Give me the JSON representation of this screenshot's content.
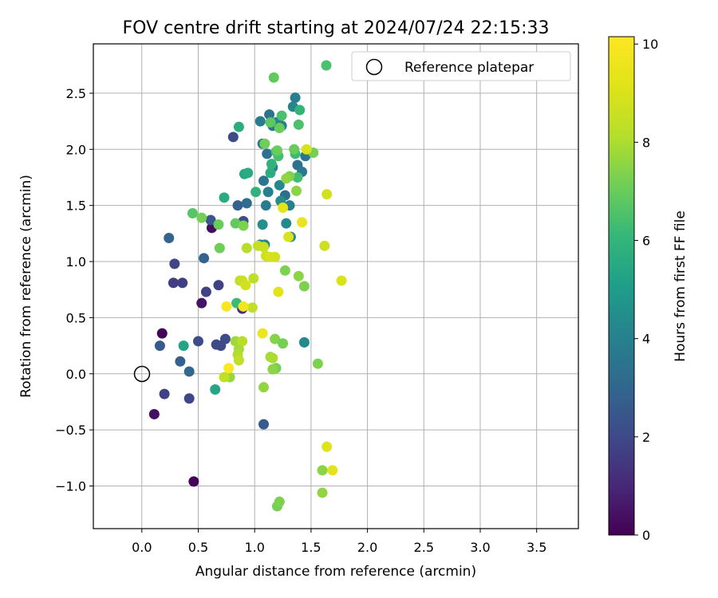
{
  "chart_data": {
    "type": "scatter",
    "title": "FOV centre drift starting at 2024/07/24 22:15:33",
    "xlabel": "Angular distance from reference (arcmin)",
    "ylabel": "Rotation from reference (arcmin)",
    "xlim": [
      -0.43,
      3.87
    ],
    "ylim": [
      -1.38,
      2.94
    ],
    "xticks": [
      "0.0",
      "0.5",
      "1.0",
      "1.5",
      "2.0",
      "2.5",
      "3.0",
      "3.5"
    ],
    "xtick_values": [
      0,
      0.5,
      1.0,
      1.5,
      2.0,
      2.5,
      3.0,
      3.5
    ],
    "yticks": [
      "−1.0",
      "−0.5",
      "0.0",
      "0.5",
      "1.0",
      "1.5",
      "2.0",
      "2.5"
    ],
    "ytick_values": [
      -1.0,
      -0.5,
      0.0,
      0.5,
      1.0,
      1.5,
      2.0,
      2.5
    ],
    "grid": true,
    "legend": {
      "position": "top-right",
      "reference_label": "Reference platepar",
      "marker_color": "#4ac16d"
    },
    "reference_point": {
      "x": 0.0,
      "y": 0.0
    },
    "colorbar": {
      "label": "Hours from first FF file",
      "range": [
        0,
        10.15
      ],
      "ticks": [
        "0",
        "2",
        "4",
        "6",
        "8",
        "10"
      ],
      "tick_values": [
        0,
        2,
        4,
        6,
        8,
        10
      ],
      "colormap": "viridis"
    },
    "points": [
      {
        "x": 0.18,
        "y": 0.36,
        "h": 0.1
      },
      {
        "x": 0.11,
        "y": -0.36,
        "h": 0.4
      },
      {
        "x": 0.46,
        "y": -0.96,
        "h": 0.1
      },
      {
        "x": 0.53,
        "y": 0.63,
        "h": 0.5
      },
      {
        "x": 0.62,
        "y": 1.3,
        "h": 0.3
      },
      {
        "x": 0.2,
        "y": -0.18,
        "h": 1.8
      },
      {
        "x": 0.42,
        "y": -0.22,
        "h": 1.9
      },
      {
        "x": 0.28,
        "y": 0.81,
        "h": 1.6
      },
      {
        "x": 0.36,
        "y": 0.81,
        "h": 1.7
      },
      {
        "x": 0.29,
        "y": 0.98,
        "h": 1.9
      },
      {
        "x": 0.57,
        "y": 0.73,
        "h": 1.8
      },
      {
        "x": 0.68,
        "y": 0.79,
        "h": 1.8
      },
      {
        "x": 0.5,
        "y": 0.29,
        "h": 2.1
      },
      {
        "x": 0.66,
        "y": 0.26,
        "h": 2.0
      },
      {
        "x": 0.7,
        "y": 0.25,
        "h": 2.0
      },
      {
        "x": 0.74,
        "y": 0.31,
        "h": 2.1
      },
      {
        "x": 0.16,
        "y": 0.25,
        "h": 2.6
      },
      {
        "x": 0.34,
        "y": 0.11,
        "h": 2.8
      },
      {
        "x": 0.42,
        "y": 0.02,
        "h": 3.0
      },
      {
        "x": 0.24,
        "y": 1.21,
        "h": 2.9
      },
      {
        "x": 0.55,
        "y": 1.03,
        "h": 2.9
      },
      {
        "x": 1.08,
        "y": -0.45,
        "h": 2.6
      },
      {
        "x": 0.89,
        "y": 0.58,
        "h": 1.2
      },
      {
        "x": 0.61,
        "y": 1.37,
        "h": 2.5
      },
      {
        "x": 0.9,
        "y": 1.36,
        "h": 2.2
      },
      {
        "x": 0.85,
        "y": 1.5,
        "h": 2.8
      },
      {
        "x": 0.93,
        "y": 1.52,
        "h": 3.2
      },
      {
        "x": 0.81,
        "y": 2.11,
        "h": 2.1
      },
      {
        "x": 1.05,
        "y": 2.25,
        "h": 3.8
      },
      {
        "x": 1.07,
        "y": 2.05,
        "h": 3.7
      },
      {
        "x": 1.13,
        "y": 2.31,
        "h": 3.5
      },
      {
        "x": 1.16,
        "y": 2.21,
        "h": 3.6
      },
      {
        "x": 1.19,
        "y": 2.24,
        "h": 4.2
      },
      {
        "x": 1.24,
        "y": 2.21,
        "h": 4.0
      },
      {
        "x": 1.36,
        "y": 2.46,
        "h": 3.9
      },
      {
        "x": 1.34,
        "y": 2.38,
        "h": 4.2
      },
      {
        "x": 1.11,
        "y": 1.96,
        "h": 3.4
      },
      {
        "x": 1.08,
        "y": 1.72,
        "h": 3.6
      },
      {
        "x": 1.12,
        "y": 1.62,
        "h": 4.0
      },
      {
        "x": 1.1,
        "y": 1.5,
        "h": 3.8
      },
      {
        "x": 1.16,
        "y": 1.84,
        "h": 3.9
      },
      {
        "x": 1.22,
        "y": 1.68,
        "h": 4.3
      },
      {
        "x": 1.27,
        "y": 1.59,
        "h": 3.3
      },
      {
        "x": 1.31,
        "y": 1.5,
        "h": 4.0
      },
      {
        "x": 1.38,
        "y": 1.86,
        "h": 3.4
      },
      {
        "x": 1.42,
        "y": 1.8,
        "h": 3.7
      },
      {
        "x": 1.45,
        "y": 1.94,
        "h": 3.6
      },
      {
        "x": 1.23,
        "y": 1.54,
        "h": 4.5
      },
      {
        "x": 1.28,
        "y": 1.34,
        "h": 4.3
      },
      {
        "x": 1.07,
        "y": 1.33,
        "h": 4.6
      },
      {
        "x": 1.05,
        "y": 1.15,
        "h": 3.9
      },
      {
        "x": 1.09,
        "y": 1.15,
        "h": 4.3
      },
      {
        "x": 1.32,
        "y": 1.22,
        "h": 4.4
      },
      {
        "x": 1.44,
        "y": 0.28,
        "h": 4.3
      },
      {
        "x": 0.37,
        "y": 0.25,
        "h": 5.3
      },
      {
        "x": 0.65,
        "y": -0.14,
        "h": 5.4
      },
      {
        "x": 0.73,
        "y": 1.57,
        "h": 5.6
      },
      {
        "x": 0.86,
        "y": 2.2,
        "h": 5.7
      },
      {
        "x": 0.91,
        "y": 1.78,
        "h": 5.4
      },
      {
        "x": 0.94,
        "y": 1.79,
        "h": 5.6
      },
      {
        "x": 1.01,
        "y": 1.62,
        "h": 5.9
      },
      {
        "x": 1.14,
        "y": 1.79,
        "h": 5.7
      },
      {
        "x": 1.15,
        "y": 1.87,
        "h": 5.9
      },
      {
        "x": 1.19,
        "y": 1.98,
        "h": 6.3
      },
      {
        "x": 1.21,
        "y": 1.94,
        "h": 6.4
      },
      {
        "x": 1.36,
        "y": 1.96,
        "h": 6.2
      },
      {
        "x": 1.38,
        "y": 1.75,
        "h": 6.3
      },
      {
        "x": 1.4,
        "y": 2.35,
        "h": 6.0
      },
      {
        "x": 1.39,
        "y": 2.22,
        "h": 6.5
      },
      {
        "x": 1.14,
        "y": 2.24,
        "h": 6.8
      },
      {
        "x": 1.24,
        "y": 2.3,
        "h": 6.5
      },
      {
        "x": 0.84,
        "y": 0.63,
        "h": 6.2
      },
      {
        "x": 0.83,
        "y": 1.34,
        "h": 6.9
      },
      {
        "x": 0.45,
        "y": 1.43,
        "h": 6.7
      },
      {
        "x": 0.53,
        "y": 1.39,
        "h": 7.2
      },
      {
        "x": 0.68,
        "y": 1.33,
        "h": 7.0
      },
      {
        "x": 0.69,
        "y": 1.12,
        "h": 7.1
      },
      {
        "x": 0.9,
        "y": 1.32,
        "h": 7.3
      },
      {
        "x": 1.17,
        "y": 2.64,
        "h": 6.9
      },
      {
        "x": 1.22,
        "y": 2.19,
        "h": 7.0
      },
      {
        "x": 1.09,
        "y": 2.05,
        "h": 7.1
      },
      {
        "x": 1.2,
        "y": 1.99,
        "h": 7.0
      },
      {
        "x": 1.35,
        "y": 2.0,
        "h": 7.0
      },
      {
        "x": 1.31,
        "y": 1.76,
        "h": 7.3
      },
      {
        "x": 1.28,
        "y": 1.74,
        "h": 7.6
      },
      {
        "x": 1.37,
        "y": 1.63,
        "h": 7.5
      },
      {
        "x": 1.52,
        "y": 1.97,
        "h": 7.2
      },
      {
        "x": 1.27,
        "y": 0.92,
        "h": 7.3
      },
      {
        "x": 1.39,
        "y": 0.87,
        "h": 7.5
      },
      {
        "x": 1.44,
        "y": 0.78,
        "h": 7.3
      },
      {
        "x": 1.18,
        "y": 0.31,
        "h": 7.4
      },
      {
        "x": 1.25,
        "y": 0.27,
        "h": 7.2
      },
      {
        "x": 1.56,
        "y": 0.09,
        "h": 7.3
      },
      {
        "x": 1.19,
        "y": 0.05,
        "h": 7.2
      },
      {
        "x": 1.16,
        "y": 0.04,
        "h": 7.5
      },
      {
        "x": 1.08,
        "y": -0.12,
        "h": 7.6
      },
      {
        "x": 1.14,
        "y": 0.15,
        "h": 7.9
      },
      {
        "x": 1.16,
        "y": 0.14,
        "h": 8.0
      },
      {
        "x": 0.83,
        "y": 0.29,
        "h": 7.8
      },
      {
        "x": 0.86,
        "y": 0.22,
        "h": 7.9
      },
      {
        "x": 0.85,
        "y": 0.17,
        "h": 8.1
      },
      {
        "x": 0.86,
        "y": 0.12,
        "h": 8.4
      },
      {
        "x": 0.89,
        "y": 0.29,
        "h": 8.2
      },
      {
        "x": 0.78,
        "y": -0.03,
        "h": 7.7
      },
      {
        "x": 0.73,
        "y": -0.03,
        "h": 8.4
      },
      {
        "x": 0.87,
        "y": 0.83,
        "h": 8.2
      },
      {
        "x": 0.89,
        "y": 0.83,
        "h": 8.6
      },
      {
        "x": 0.92,
        "y": 0.79,
        "h": 8.8
      },
      {
        "x": 0.99,
        "y": 0.85,
        "h": 8.3
      },
      {
        "x": 0.98,
        "y": 0.59,
        "h": 8.4
      },
      {
        "x": 0.93,
        "y": 1.12,
        "h": 8.2
      },
      {
        "x": 1.03,
        "y": 1.14,
        "h": 8.4
      },
      {
        "x": 1.08,
        "y": 1.13,
        "h": 8.6
      },
      {
        "x": 1.1,
        "y": 1.05,
        "h": 8.7
      },
      {
        "x": 1.14,
        "y": 1.04,
        "h": 8.9
      },
      {
        "x": 1.18,
        "y": 1.04,
        "h": 8.8
      },
      {
        "x": 1.3,
        "y": 1.22,
        "h": 9.0
      },
      {
        "x": 1.25,
        "y": 1.48,
        "h": 9.3
      },
      {
        "x": 1.42,
        "y": 1.35,
        "h": 9.5
      },
      {
        "x": 1.46,
        "y": 2.0,
        "h": 8.9
      },
      {
        "x": 1.64,
        "y": 1.6,
        "h": 8.8
      },
      {
        "x": 1.62,
        "y": 1.14,
        "h": 8.7
      },
      {
        "x": 1.77,
        "y": 0.83,
        "h": 9.0
      },
      {
        "x": 1.21,
        "y": 0.73,
        "h": 9.2
      },
      {
        "x": 1.07,
        "y": 0.36,
        "h": 9.6
      },
      {
        "x": 0.9,
        "y": 0.6,
        "h": 9.8
      },
      {
        "x": 0.75,
        "y": 0.6,
        "h": 10.0
      },
      {
        "x": 0.77,
        "y": 0.05,
        "h": 10.1
      },
      {
        "x": 1.2,
        "y": -1.18,
        "h": 7.2
      },
      {
        "x": 1.22,
        "y": -1.14,
        "h": 7.3
      },
      {
        "x": 1.6,
        "y": -0.86,
        "h": 7.5
      },
      {
        "x": 1.6,
        "y": -1.06,
        "h": 7.6
      },
      {
        "x": 1.64,
        "y": -0.65,
        "h": 9.1
      },
      {
        "x": 1.69,
        "y": -0.86,
        "h": 9.2
      }
    ]
  }
}
